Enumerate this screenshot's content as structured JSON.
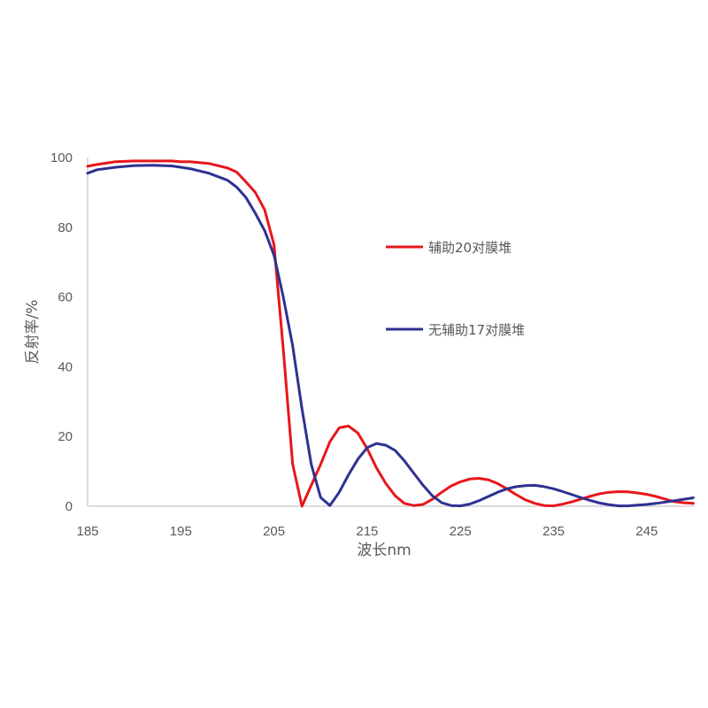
{
  "chart_data": {
    "type": "line",
    "title": "",
    "xlabel": "波长nm",
    "ylabel": "反射率/%",
    "xlim": [
      185,
      250
    ],
    "ylim": [
      0,
      100
    ],
    "x_ticks": [
      185,
      195,
      205,
      215,
      225,
      235,
      245
    ],
    "y_ticks": [
      0,
      20,
      40,
      60,
      80,
      100
    ],
    "grid": false,
    "legend_position": "right-center inside plot",
    "series": [
      {
        "name": "辅助20对膜堆",
        "color": "#e8161b",
        "x": [
          185,
          186,
          188,
          190,
          192,
          194,
          195,
          196,
          198,
          200,
          201,
          202,
          203,
          204,
          205,
          206,
          207,
          208,
          209,
          210,
          211,
          212,
          213,
          214,
          215,
          216,
          217,
          218,
          219,
          220,
          221,
          222,
          223,
          224,
          225,
          226,
          227,
          228,
          229,
          230,
          231,
          232,
          233,
          234,
          235,
          236,
          237,
          238,
          239,
          240,
          241,
          242,
          243,
          244,
          245,
          246,
          247,
          248,
          249,
          250
        ],
        "values": [
          97.5,
          98,
          98.8,
          99,
          99,
          99,
          98.8,
          98.8,
          98.3,
          97,
          95.8,
          93,
          90,
          85,
          75,
          45,
          12,
          0,
          6,
          12,
          18.5,
          22.5,
          23,
          21,
          16.5,
          11,
          6.5,
          3,
          0.8,
          0.2,
          0.5,
          2,
          4,
          5.8,
          7,
          7.8,
          8,
          7.6,
          6.5,
          5,
          3.3,
          1.8,
          0.8,
          0.2,
          0.1,
          0.6,
          1.3,
          2.1,
          2.9,
          3.6,
          4,
          4.2,
          4.1,
          3.8,
          3.4,
          2.8,
          2,
          1.3,
          1,
          0.8
        ]
      },
      {
        "name": "无辅助17对膜堆",
        "color": "#2e3192",
        "x": [
          185,
          186,
          188,
          190,
          192,
          194,
          195,
          196,
          198,
          200,
          201,
          202,
          203,
          204,
          205,
          206,
          207,
          208,
          209,
          210,
          211,
          212,
          213,
          214,
          215,
          216,
          217,
          218,
          219,
          220,
          221,
          222,
          223,
          224,
          225,
          226,
          227,
          228,
          229,
          230,
          231,
          232,
          233,
          234,
          235,
          236,
          237,
          238,
          239,
          240,
          241,
          242,
          243,
          244,
          245,
          246,
          247,
          248,
          249,
          250
        ],
        "values": [
          95.5,
          96.5,
          97.2,
          97.7,
          97.8,
          97.6,
          97.2,
          96.8,
          95.5,
          93.5,
          91.5,
          88.5,
          84,
          79,
          72,
          60,
          46,
          28,
          12,
          2.5,
          0.2,
          4,
          9,
          13.5,
          16.8,
          18,
          17.5,
          16,
          13,
          9.5,
          6,
          3,
          1,
          0.2,
          0.1,
          0.6,
          1.6,
          2.8,
          4,
          5,
          5.6,
          5.9,
          6,
          5.6,
          5,
          4.2,
          3.3,
          2.4,
          1.6,
          0.9,
          0.4,
          0.1,
          0.1,
          0.3,
          0.5,
          0.8,
          1.2,
          1.6,
          2,
          2.4
        ]
      }
    ]
  },
  "legend": {
    "items": [
      {
        "label": "辅助20对膜堆",
        "color": "#e8161b"
      },
      {
        "label": "无辅助17对膜堆",
        "color": "#2e3192"
      }
    ]
  },
  "axes": {
    "x_title": "波长nm",
    "y_title": "反射率/%",
    "x_tick_labels": [
      "185",
      "195",
      "205",
      "215",
      "225",
      "235",
      "245"
    ],
    "y_tick_labels": [
      "0",
      "20",
      "40",
      "60",
      "80",
      "100"
    ],
    "axis_color": "#d0d0d0"
  }
}
